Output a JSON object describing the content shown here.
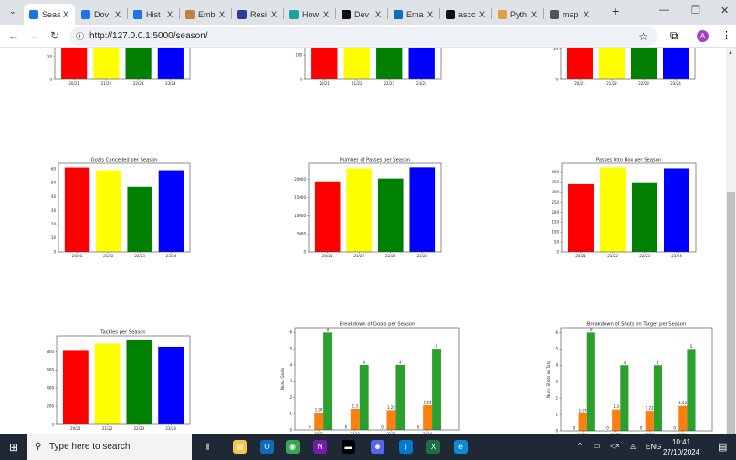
{
  "browser": {
    "tabs": [
      {
        "label": "Seas",
        "icon": "cc-icon",
        "color": "#1a73e8",
        "active": true
      },
      {
        "label": "Dov",
        "icon": "download-icon",
        "color": "#1a73e8"
      },
      {
        "label": "Hist",
        "icon": "history-icon",
        "color": "#1a73e8"
      },
      {
        "label": "Emb",
        "icon": "emblem-icon",
        "color": "#c08040"
      },
      {
        "label": "Resi",
        "icon": "page-icon",
        "color": "#2a3e9e"
      },
      {
        "label": "How",
        "icon": "hover-icon",
        "color": "#1ba39c"
      },
      {
        "label": "Dev",
        "icon": "dev-icon",
        "color": "#111111"
      },
      {
        "label": "Ema",
        "icon": "outlook-icon",
        "color": "#0f6cbd"
      },
      {
        "label": "ascc",
        "icon": "github-icon",
        "color": "#111111"
      },
      {
        "label": "Pyth",
        "icon": "python-icon",
        "color": "#e0a040"
      },
      {
        "label": "map",
        "icon": "globe-icon",
        "color": "#555555"
      }
    ],
    "close_glyph": "X",
    "new_tab": "+",
    "url": "http://127.0.0.1:5000/season/",
    "profile_initial": "A"
  },
  "chart_data": [
    {
      "type": "bar",
      "title": "",
      "categories": [
        "20/21",
        "21/22",
        "22/23",
        "23/24"
      ],
      "yticks": [
        "0",
        "10",
        "20"
      ],
      "colors": [
        "#ff0000",
        "#ffff00",
        "#008000",
        "#0000ff"
      ]
    },
    {
      "type": "bar",
      "title": "",
      "categories": [
        "20/21",
        "21/22",
        "22/23",
        "23/24"
      ],
      "yticks": [
        "0",
        "100",
        "200"
      ],
      "colors": [
        "#ff0000",
        "#ffff00",
        "#008000",
        "#0000ff"
      ]
    },
    {
      "type": "bar",
      "title": "",
      "categories": [
        "20/21",
        "21/22",
        "22/23",
        "23/24"
      ],
      "yticks": [
        "0",
        "50"
      ],
      "colors": [
        "#ff0000",
        "#ffff00",
        "#008000",
        "#0000ff"
      ]
    },
    {
      "type": "bar",
      "title": "Goals Conceded per Season",
      "categories": [
        "20/21",
        "21/22",
        "22/23",
        "23/24"
      ],
      "values": [
        61,
        59,
        47,
        59
      ],
      "ylim": [
        0,
        64
      ],
      "yticks": [
        "0",
        "10",
        "20",
        "30",
        "40",
        "50",
        "60"
      ],
      "colors": [
        "#ff0000",
        "#ffff00",
        "#008000",
        "#0000ff"
      ]
    },
    {
      "type": "bar",
      "title": "Number of Passes per Season",
      "categories": [
        "20/21",
        "21/22",
        "22/23",
        "23/24"
      ],
      "values": [
        19500,
        23100,
        20300,
        23400
      ],
      "ylim": [
        0,
        24500
      ],
      "yticks": [
        "0",
        "5000",
        "10000",
        "15000",
        "20000"
      ],
      "colors": [
        "#ff0000",
        "#ffff00",
        "#008000",
        "#0000ff"
      ]
    },
    {
      "type": "bar",
      "title": "Passes Into Box per Season",
      "categories": [
        "20/21",
        "21/22",
        "22/23",
        "23/24"
      ],
      "values": [
        340,
        425,
        350,
        420
      ],
      "ylim": [
        0,
        445
      ],
      "yticks": [
        "0",
        "50",
        "100",
        "150",
        "200",
        "250",
        "300",
        "350",
        "400"
      ],
      "colors": [
        "#ff0000",
        "#ffff00",
        "#008000",
        "#0000ff"
      ]
    },
    {
      "type": "bar",
      "title": "Tackles per Season",
      "categories": [
        "20/21",
        "21/22",
        "22/23",
        "23/24"
      ],
      "values": [
        810,
        890,
        930,
        855
      ],
      "ylim": [
        0,
        975
      ],
      "yticks": [
        "0",
        "200",
        "400",
        "600",
        "800"
      ],
      "colors": [
        "#ff0000",
        "#ffff00",
        "#008000",
        "#0000ff"
      ]
    },
    {
      "type": "bar",
      "title": "Breakdown of Goals per Season",
      "ylabel": "Num. Goals",
      "categories": [
        "2021",
        "2122",
        "2223",
        "2324"
      ],
      "ylim": [
        0,
        6.3
      ],
      "yticks": [
        "0",
        "1",
        "2",
        "3",
        "4",
        "5",
        "6"
      ],
      "series": [
        {
          "values": [
            0,
            0,
            0,
            0
          ],
          "labels": [
            "0",
            "0",
            "0",
            "0"
          ],
          "color": "#1f77b4"
        },
        {
          "values": [
            1.07,
            1.3,
            1.22,
            1.52
          ],
          "labels": [
            "1.07",
            "1.3",
            "1.22",
            "1.52"
          ],
          "color": "#ff7f0e"
        },
        {
          "values": [
            6,
            4,
            4,
            5
          ],
          "labels": [
            "6",
            "4",
            "4",
            "5"
          ],
          "color": "#2ca02c"
        }
      ]
    },
    {
      "type": "bar",
      "title": "Breakdown of Shots on Target per Season",
      "ylabel": "Num. Shots on Targ",
      "categories": [
        "2021",
        "2122",
        "2223",
        "2324"
      ],
      "ylim": [
        0,
        6.3
      ],
      "yticks": [
        "0",
        "1",
        "2",
        "3",
        "4",
        "5",
        "6"
      ],
      "series": [
        {
          "values": [
            0,
            0,
            0,
            0
          ],
          "labels": [
            "0",
            "0",
            "0",
            "0"
          ],
          "color": "#1f77b4"
        },
        {
          "values": [
            1.07,
            1.3,
            1.22,
            1.52
          ],
          "labels": [
            "1.07",
            "1.3",
            "1.22",
            "1.52"
          ],
          "color": "#ff7f0e"
        },
        {
          "values": [
            6,
            4,
            4,
            5
          ],
          "labels": [
            "6",
            "4",
            "4",
            "5"
          ],
          "color": "#2ca02c"
        }
      ]
    }
  ],
  "taskbar": {
    "search_placeholder": "Type here to search",
    "apps": [
      {
        "name": "task-view",
        "color": "#1f2835",
        "glyph": "⫼"
      },
      {
        "name": "file-explorer",
        "color": "#f2c94c",
        "glyph": "▤"
      },
      {
        "name": "outlook",
        "color": "#0f6cbd",
        "glyph": "O"
      },
      {
        "name": "chrome",
        "color": "#34a853",
        "glyph": "◉"
      },
      {
        "name": "onenote",
        "color": "#7719aa",
        "glyph": "N"
      },
      {
        "name": "terminal",
        "color": "#000000",
        "glyph": "▬"
      },
      {
        "name": "discord",
        "color": "#5865f2",
        "glyph": "☻"
      },
      {
        "name": "vscode",
        "color": "#007acc",
        "glyph": "⟩"
      },
      {
        "name": "excel",
        "color": "#1d6f42",
        "glyph": "X"
      },
      {
        "name": "edge",
        "color": "#0c8ad6",
        "glyph": "e"
      }
    ],
    "language": "ENG",
    "time": "10:41",
    "date": "27/10/2024"
  }
}
